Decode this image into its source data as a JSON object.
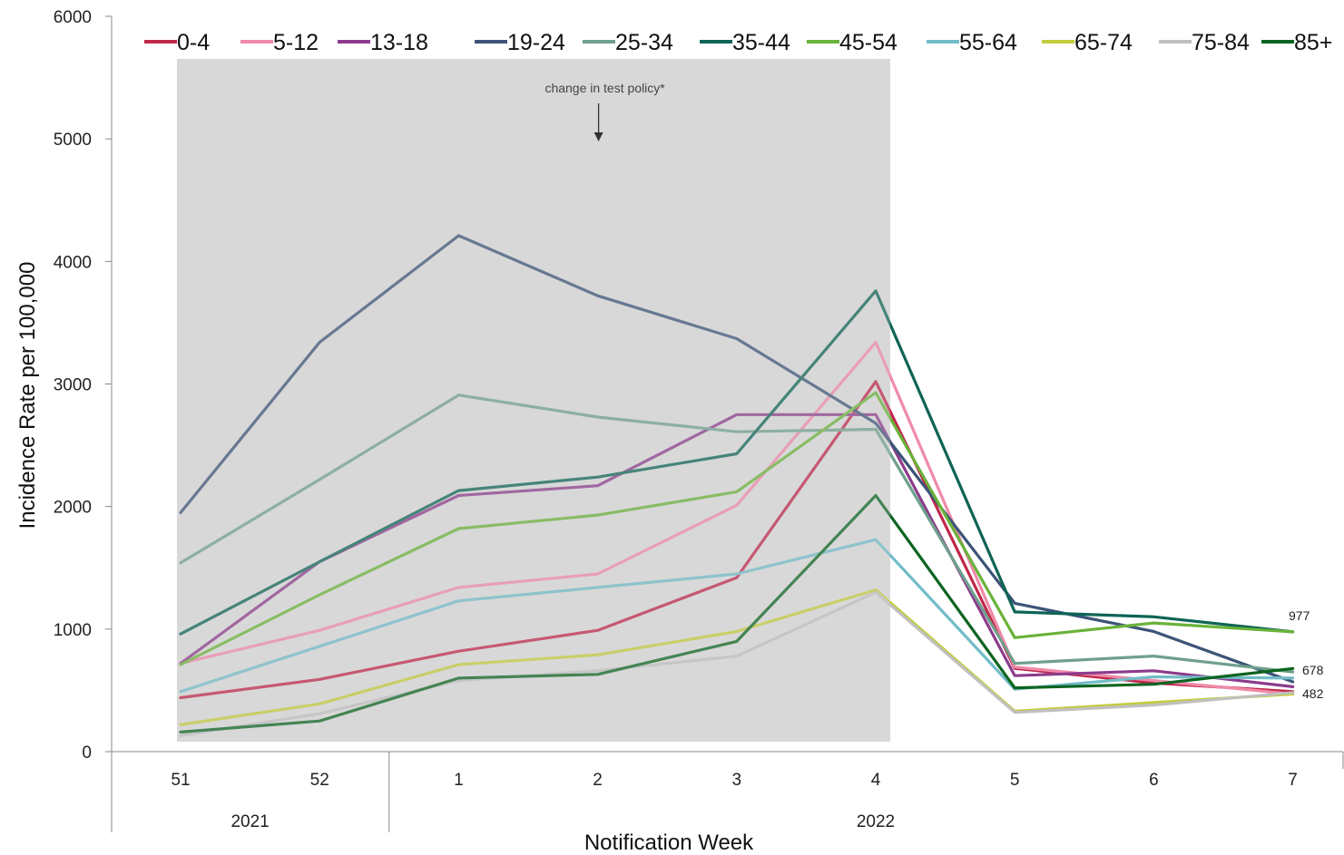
{
  "chart_data": {
    "type": "line",
    "xlabel": "Notification Week",
    "ylabel": "Incidence Rate per 100,000",
    "ylim": [
      0,
      6000
    ],
    "yticks": [
      0,
      1000,
      2000,
      3000,
      4000,
      5000,
      6000
    ],
    "categories": [
      "51",
      "52",
      "1",
      "2",
      "3",
      "4",
      "5",
      "6",
      "7"
    ],
    "year_groups": [
      {
        "label": "2021",
        "categories": [
          "51",
          "52"
        ]
      },
      {
        "label": "2022",
        "categories": [
          "1",
          "2",
          "3",
          "4",
          "5",
          "6",
          "7"
        ]
      }
    ],
    "shaded_region": {
      "from": "51",
      "to": "4"
    },
    "annotation": {
      "text": "change in test policy*",
      "at": "2"
    },
    "end_labels": [
      "977",
      "678",
      "482"
    ],
    "legend_position": "top",
    "grid": false,
    "series": [
      {
        "name": "0-4",
        "color": "#c0284c",
        "values": [
          440,
          590,
          820,
          990,
          1420,
          3020,
          680,
          560,
          490
        ]
      },
      {
        "name": "5-12",
        "color": "#ef8aa8",
        "values": [
          720,
          990,
          1340,
          1450,
          2010,
          3340,
          690,
          580,
          470
        ]
      },
      {
        "name": "13-18",
        "color": "#8c3c8c",
        "values": [
          720,
          1550,
          2090,
          2170,
          2750,
          2750,
          620,
          660,
          530
        ]
      },
      {
        "name": "19-24",
        "color": "#3c5478",
        "values": [
          1950,
          3340,
          4210,
          3720,
          3370,
          2680,
          1210,
          980,
          570
        ]
      },
      {
        "name": "25-34",
        "color": "#6fa08c",
        "values": [
          1540,
          2220,
          2910,
          2730,
          2610,
          2630,
          720,
          780,
          650
        ]
      },
      {
        "name": "35-44",
        "color": "#0e6455",
        "values": [
          960,
          1550,
          2130,
          2240,
          2430,
          3760,
          1140,
          1100,
          977
        ]
      },
      {
        "name": "45-54",
        "color": "#6ab23a",
        "values": [
          710,
          1280,
          1820,
          1930,
          2120,
          2930,
          930,
          1050,
          977
        ]
      },
      {
        "name": "55-64",
        "color": "#72bcc8",
        "values": [
          490,
          860,
          1230,
          1340,
          1450,
          1730,
          510,
          610,
          600
        ]
      },
      {
        "name": "65-74",
        "color": "#c2cc3c",
        "values": [
          220,
          390,
          710,
          790,
          980,
          1320,
          330,
          400,
          470
        ]
      },
      {
        "name": "75-84",
        "color": "#c0c0c0",
        "values": [
          130,
          310,
          580,
          660,
          780,
          1300,
          320,
          380,
          482
        ]
      },
      {
        "name": "85+",
        "color": "#0c6420",
        "values": [
          160,
          250,
          600,
          630,
          900,
          2090,
          520,
          550,
          678
        ]
      }
    ]
  }
}
